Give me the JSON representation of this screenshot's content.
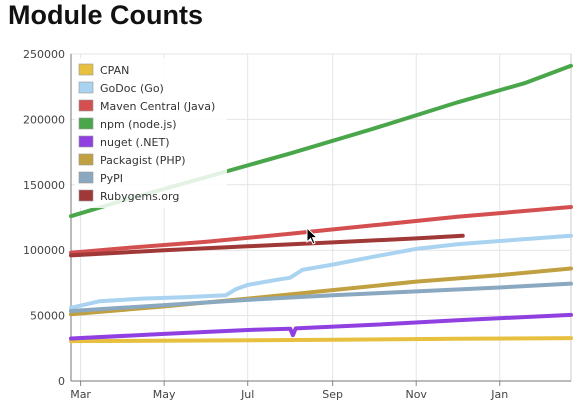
{
  "page": {
    "title": "Module Counts"
  },
  "colors": {
    "cpan": "#e8c040",
    "godoc": "#a9d3f0",
    "maven": "#d45050",
    "npm": "#4aa64a",
    "nuget": "#9040e0",
    "packagist": "#c0a040",
    "pypi": "#8aa8c0",
    "rubygems": "#a03838"
  },
  "chart_data": {
    "type": "line",
    "title": "Module Counts",
    "xlabel": "",
    "ylabel": "",
    "ylim": [
      0,
      250000
    ],
    "yticks": [
      0,
      50000,
      100000,
      150000,
      200000,
      250000
    ],
    "xlim": [
      "2013-02-22",
      "2014-02-22"
    ],
    "xticks": [
      {
        "label": "Mar",
        "date": "2013-03-01"
      },
      {
        "label": "May",
        "date": "2013-05-01"
      },
      {
        "label": "Jul",
        "date": "2013-07-01"
      },
      {
        "label": "Sep",
        "date": "2013-09-01"
      },
      {
        "label": "Nov",
        "date": "2013-11-01"
      },
      {
        "label": "Jan",
        "date": "2014-01-01"
      }
    ],
    "grid": true,
    "legend": "top-left",
    "series": [
      {
        "name": "CPAN",
        "color_key": "cpan",
        "points": [
          [
            "2013-02-22",
            30500
          ],
          [
            "2013-06-01",
            31000
          ],
          [
            "2013-09-01",
            31600
          ],
          [
            "2013-12-01",
            32300
          ],
          [
            "2014-02-22",
            32800
          ]
        ]
      },
      {
        "name": "GoDoc (Go)",
        "color_key": "godoc",
        "points": [
          [
            "2013-02-22",
            56000
          ],
          [
            "2013-03-15",
            61000
          ],
          [
            "2013-04-15",
            63000
          ],
          [
            "2013-05-15",
            64000
          ],
          [
            "2013-06-15",
            65500
          ],
          [
            "2013-06-22",
            70000
          ],
          [
            "2013-07-01",
            73500
          ],
          [
            "2013-07-20",
            77000
          ],
          [
            "2013-08-01",
            79000
          ],
          [
            "2013-08-10",
            85000
          ],
          [
            "2013-09-01",
            89000
          ],
          [
            "2013-10-01",
            95000
          ],
          [
            "2013-11-01",
            101000
          ],
          [
            "2013-12-01",
            104500
          ],
          [
            "2014-01-01",
            107000
          ],
          [
            "2014-02-22",
            111000
          ]
        ]
      },
      {
        "name": "Maven Central (Java)",
        "color_key": "maven",
        "points": [
          [
            "2013-02-22",
            98000
          ],
          [
            "2013-04-01",
            101500
          ],
          [
            "2013-06-01",
            106500
          ],
          [
            "2013-08-01",
            112500
          ],
          [
            "2013-10-01",
            119000
          ],
          [
            "2013-12-01",
            125500
          ],
          [
            "2014-02-22",
            133000
          ]
        ]
      },
      {
        "name": "npm (node.js)",
        "color_key": "npm",
        "points": [
          [
            "2013-02-22",
            126000
          ],
          [
            "2013-04-01",
            138000
          ],
          [
            "2013-06-01",
            156000
          ],
          [
            "2013-08-01",
            174000
          ],
          [
            "2013-10-01",
            193000
          ],
          [
            "2013-12-01",
            213000
          ],
          [
            "2014-01-20",
            228000
          ],
          [
            "2014-02-22",
            241000
          ]
        ]
      },
      {
        "name": "nuget (.NET)",
        "color_key": "nuget",
        "points": [
          [
            "2013-02-22",
            32500
          ],
          [
            "2013-05-01",
            36000
          ],
          [
            "2013-07-01",
            39000
          ],
          [
            "2013-08-01",
            40000
          ],
          [
            "2013-08-03",
            35000
          ],
          [
            "2013-08-05",
            40200
          ],
          [
            "2013-10-01",
            43000
          ],
          [
            "2013-12-01",
            46500
          ],
          [
            "2014-02-22",
            50500
          ]
        ]
      },
      {
        "name": "Packagist (PHP)",
        "color_key": "packagist",
        "points": [
          [
            "2013-02-22",
            51000
          ],
          [
            "2013-05-01",
            57000
          ],
          [
            "2013-07-01",
            63000
          ],
          [
            "2013-09-01",
            69500
          ],
          [
            "2013-11-01",
            76000
          ],
          [
            "2014-01-01",
            81000
          ],
          [
            "2014-02-22",
            86000
          ]
        ]
      },
      {
        "name": "PyPI",
        "color_key": "pypi",
        "points": [
          [
            "2013-02-22",
            53500
          ],
          [
            "2013-05-01",
            58000
          ],
          [
            "2013-07-01",
            62000
          ],
          [
            "2013-09-01",
            65500
          ],
          [
            "2013-11-01",
            68500
          ],
          [
            "2014-01-01",
            71500
          ],
          [
            "2014-02-22",
            74500
          ]
        ]
      },
      {
        "name": "Rubygems.org",
        "color_key": "rubygems",
        "points": [
          [
            "2013-02-22",
            96000
          ],
          [
            "2013-05-01",
            100000
          ],
          [
            "2013-07-01",
            103000
          ],
          [
            "2013-09-01",
            106000
          ],
          [
            "2013-11-01",
            109000
          ],
          [
            "2013-12-05",
            111000
          ]
        ]
      }
    ]
  }
}
